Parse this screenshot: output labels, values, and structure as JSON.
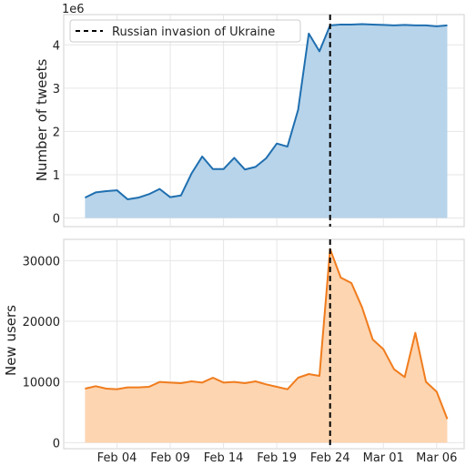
{
  "chart_data": [
    {
      "type": "area",
      "ylabel": "Number of tweets",
      "xlabel": "",
      "scale_label": "1e6",
      "ylim": [
        -0.2,
        4.7
      ],
      "y_ticks": [
        0,
        1,
        2,
        3,
        4
      ],
      "y_tick_labels": [
        "0",
        "1",
        "2",
        "3",
        "4"
      ],
      "grid": true,
      "color": "#1f6fb0",
      "fill_color": "#b8d4ea",
      "series": [
        {
          "x": [
            "2022-02-01",
            "2022-02-02",
            "2022-02-03",
            "2022-02-04",
            "2022-02-05",
            "2022-02-06",
            "2022-02-07",
            "2022-02-08",
            "2022-02-09",
            "2022-02-10",
            "2022-02-11",
            "2022-02-12",
            "2022-02-13",
            "2022-02-14",
            "2022-02-15",
            "2022-02-16",
            "2022-02-17",
            "2022-02-18",
            "2022-02-19",
            "2022-02-20",
            "2022-02-21",
            "2022-02-22",
            "2022-02-23",
            "2022-02-24",
            "2022-02-25",
            "2022-02-26",
            "2022-02-27",
            "2022-02-28",
            "2022-03-01",
            "2022-03-02",
            "2022-03-03",
            "2022-03-04",
            "2022-03-05",
            "2022-03-06",
            "2022-03-07"
          ],
          "values": [
            0.47,
            0.59,
            0.62,
            0.64,
            0.43,
            0.47,
            0.55,
            0.67,
            0.48,
            0.52,
            1.03,
            1.42,
            1.13,
            1.13,
            1.39,
            1.12,
            1.18,
            1.38,
            1.72,
            1.65,
            2.5,
            4.26,
            3.85,
            4.45,
            4.47,
            4.47,
            4.48,
            4.47,
            4.46,
            4.45,
            4.46,
            4.45,
            4.45,
            4.43,
            4.45
          ]
        }
      ]
    },
    {
      "type": "area",
      "ylabel": "New users",
      "xlabel": "",
      "ylim": [
        -1000,
        33500
      ],
      "y_ticks": [
        0,
        10000,
        20000,
        30000
      ],
      "y_tick_labels": [
        "0",
        "10000",
        "20000",
        "30000"
      ],
      "grid": true,
      "color": "#f07c1d",
      "fill_color": "#fdd5b1",
      "series": [
        {
          "x": [
            "2022-02-01",
            "2022-02-02",
            "2022-02-03",
            "2022-02-04",
            "2022-02-05",
            "2022-02-06",
            "2022-02-07",
            "2022-02-08",
            "2022-02-09",
            "2022-02-10",
            "2022-02-11",
            "2022-02-12",
            "2022-02-13",
            "2022-02-14",
            "2022-02-15",
            "2022-02-16",
            "2022-02-17",
            "2022-02-18",
            "2022-02-19",
            "2022-02-20",
            "2022-02-21",
            "2022-02-22",
            "2022-02-23",
            "2022-02-24",
            "2022-02-25",
            "2022-02-26",
            "2022-02-27",
            "2022-02-28",
            "2022-03-01",
            "2022-03-02",
            "2022-03-03",
            "2022-03-04",
            "2022-03-05",
            "2022-03-06",
            "2022-03-07"
          ],
          "values": [
            8900,
            9300,
            8900,
            8800,
            9100,
            9100,
            9200,
            10000,
            9900,
            9800,
            10100,
            9900,
            10700,
            9900,
            10000,
            9800,
            10100,
            9600,
            9200,
            8800,
            10700,
            11300,
            11000,
            31900,
            27200,
            26300,
            22300,
            17000,
            15400,
            12100,
            10800,
            18100,
            10000,
            8400,
            3900
          ]
        }
      ]
    }
  ],
  "x_axis": {
    "tick_dates": [
      "2022-02-04",
      "2022-02-09",
      "2022-02-14",
      "2022-02-19",
      "2022-02-24",
      "2022-03-01",
      "2022-03-06"
    ],
    "tick_labels": [
      "Feb 04",
      "Feb 09",
      "Feb 14",
      "Feb 19",
      "Feb 24",
      "Mar 01",
      "Mar 06"
    ]
  },
  "event": {
    "date": "2022-02-24",
    "label": "Russian invasion of Ukraine"
  },
  "legend": {
    "position": "top-left"
  }
}
